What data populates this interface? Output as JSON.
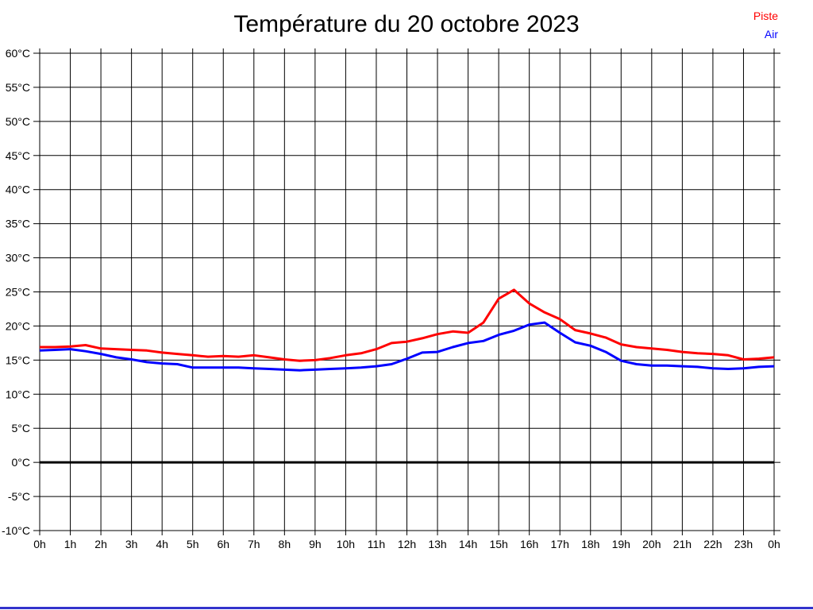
{
  "title": "Température du 20 octobre 2023",
  "legend": {
    "piste": "Piste",
    "air": "Air"
  },
  "colors": {
    "piste": "#ff0000",
    "air": "#0000ff",
    "grid": "#000000",
    "axis": "#000000",
    "zero_line": "#000000",
    "title_text": "#000000",
    "bottom_bar": "#3333cc"
  },
  "chart_data": {
    "type": "line",
    "title": "Température du 20 octobre 2023",
    "xlabel": "",
    "ylabel": "",
    "x_unit": "h",
    "y_unit": "°C",
    "xlim": [
      0,
      24
    ],
    "ylim": [
      -10,
      60
    ],
    "grid": true,
    "legend_position": "top-right",
    "zero_line_emphasized": true,
    "y_ticks": {
      "values": [
        60,
        55,
        50,
        45,
        40,
        35,
        30,
        25,
        20,
        15,
        10,
        5,
        0,
        -5,
        -10
      ],
      "labels": [
        "60°C",
        "55°C",
        "50°C",
        "45°C",
        "40°C",
        "35°C",
        "30°C",
        "25°C",
        "20°C",
        "15°C",
        "10°C",
        "5°C",
        "0°C",
        "-5°C",
        "-10°C"
      ]
    },
    "x_ticks": {
      "values": [
        0,
        1,
        2,
        3,
        4,
        5,
        6,
        7,
        8,
        9,
        10,
        11,
        12,
        13,
        14,
        15,
        16,
        17,
        18,
        19,
        20,
        21,
        22,
        23,
        24
      ],
      "labels": [
        "0h",
        "1h",
        "2h",
        "3h",
        "4h",
        "5h",
        "6h",
        "7h",
        "8h",
        "9h",
        "10h",
        "11h",
        "12h",
        "13h",
        "14h",
        "15h",
        "16h",
        "17h",
        "18h",
        "19h",
        "20h",
        "21h",
        "22h",
        "23h",
        "0h"
      ]
    },
    "x": [
      0,
      0.5,
      1,
      1.5,
      2,
      2.5,
      3,
      3.5,
      4,
      4.5,
      5,
      5.5,
      6,
      6.5,
      7,
      7.5,
      8,
      8.5,
      9,
      9.5,
      10,
      10.5,
      11,
      11.5,
      12,
      12.5,
      13,
      13.5,
      14,
      14.5,
      15,
      15.5,
      16,
      16.5,
      17,
      17.5,
      18,
      18.5,
      19,
      19.5,
      20,
      20.5,
      21,
      21.5,
      22,
      22.5,
      23,
      23.5,
      24
    ],
    "series": [
      {
        "name": "Piste",
        "color": "#ff0000",
        "values": [
          16.9,
          16.9,
          17.0,
          17.2,
          16.7,
          16.6,
          16.5,
          16.4,
          16.1,
          15.9,
          15.7,
          15.5,
          15.6,
          15.5,
          15.7,
          15.4,
          15.1,
          14.9,
          15.0,
          15.3,
          15.7,
          16.0,
          16.6,
          17.5,
          17.7,
          18.2,
          18.8,
          19.2,
          19.0,
          20.5,
          24.0,
          25.3,
          23.3,
          22.0,
          21.0,
          19.4,
          18.9,
          18.3,
          17.3,
          16.9,
          16.7,
          16.5,
          16.2,
          16.0,
          15.9,
          15.7,
          15.1,
          15.2,
          15.4
        ]
      },
      {
        "name": "Air",
        "color": "#0000ff",
        "values": [
          16.4,
          16.5,
          16.6,
          16.3,
          15.9,
          15.4,
          15.1,
          14.7,
          14.5,
          14.4,
          13.9,
          13.9,
          13.9,
          13.9,
          13.8,
          13.7,
          13.6,
          13.5,
          13.6,
          13.7,
          13.8,
          13.9,
          14.1,
          14.4,
          15.2,
          16.1,
          16.2,
          16.9,
          17.5,
          17.8,
          18.7,
          19.3,
          20.2,
          20.5,
          19.0,
          17.6,
          17.1,
          16.2,
          14.9,
          14.4,
          14.2,
          14.2,
          14.1,
          14.0,
          13.8,
          13.7,
          13.8,
          14.0,
          14.1
        ]
      }
    ]
  }
}
